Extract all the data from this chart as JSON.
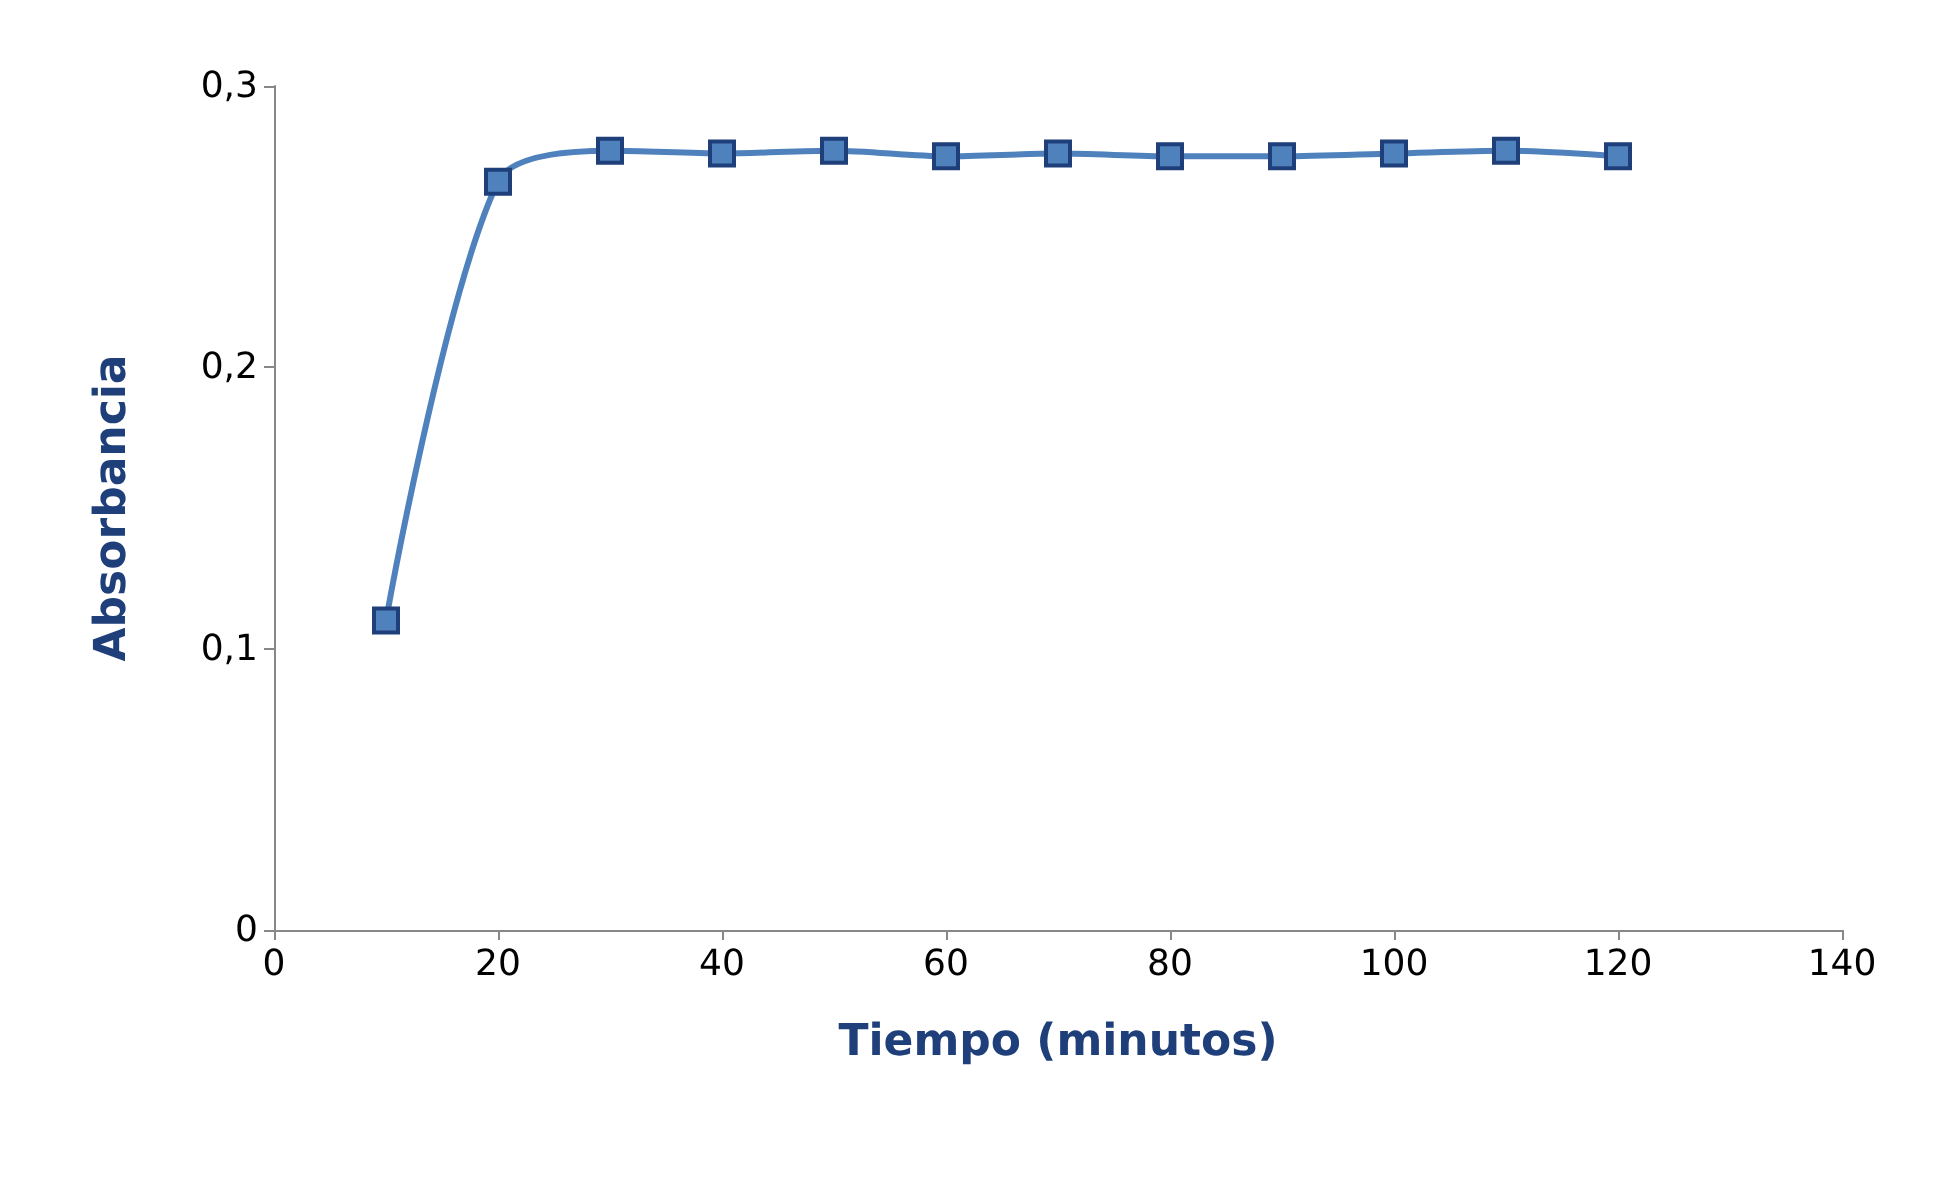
{
  "chart_data": {
    "type": "line",
    "xlabel": "Tiempo (minutos)",
    "ylabel": "Absorbancia",
    "x": [
      10,
      20,
      30,
      40,
      50,
      60,
      70,
      80,
      90,
      100,
      110,
      120
    ],
    "series": [
      {
        "color": "#4f81bd",
        "values": [
          0.11,
          0.266,
          0.277,
          0.276,
          0.277,
          0.275,
          0.276,
          0.275,
          0.275,
          0.276,
          0.277,
          0.275
        ]
      }
    ],
    "xlim": [
      0,
      140
    ],
    "xticks": [
      0,
      20,
      40,
      60,
      80,
      100,
      120,
      140
    ],
    "ylim": [
      0,
      0.3
    ],
    "yticks": [
      {
        "value": 0,
        "label": "0"
      },
      {
        "value": 0.1,
        "label": "0,1"
      },
      {
        "value": 0.2,
        "label": "0,2"
      },
      {
        "value": 0.3,
        "label": "0,3"
      }
    ],
    "marker": "square",
    "line_style": "solid"
  }
}
